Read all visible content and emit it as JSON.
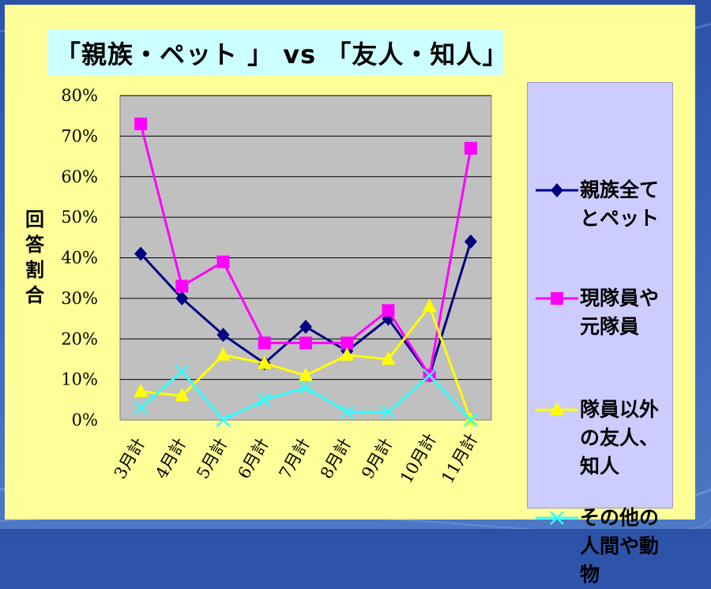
{
  "chart_data": {
    "type": "line",
    "title": "「親族・ペット 」 vs 「友人・知人」",
    "ylabel": "回答割合",
    "xlabel": "",
    "categories": [
      "3月計",
      "4月計",
      "5月計",
      "6月計",
      "7月計",
      "8月計",
      "9月計",
      "10月計",
      "11月計"
    ],
    "y_ticks": [
      "0%",
      "10%",
      "20%",
      "30%",
      "40%",
      "50%",
      "60%",
      "70%",
      "80%"
    ],
    "ylim": [
      0,
      80
    ],
    "grid": true,
    "legend_position": "right",
    "series": [
      {
        "name": "親族全てとペット",
        "color": "#000080",
        "marker": "diamond",
        "values": [
          41,
          30,
          21,
          14,
          23,
          17,
          25,
          11,
          44
        ]
      },
      {
        "name": "現隊員や元隊員",
        "color": "#ff00ff",
        "marker": "square",
        "values": [
          73,
          33,
          39,
          19,
          19,
          19,
          27,
          11,
          67
        ]
      },
      {
        "name": "隊員以外の友人、知人",
        "color": "#ffff00",
        "marker": "triangle",
        "values": [
          7,
          6,
          16,
          14,
          11,
          16,
          15,
          28,
          0
        ]
      },
      {
        "name": "その他の人間や動物",
        "color": "#33ffff",
        "marker": "x",
        "values": [
          3,
          12,
          0,
          5,
          8,
          2,
          2,
          11,
          0
        ]
      }
    ]
  }
}
